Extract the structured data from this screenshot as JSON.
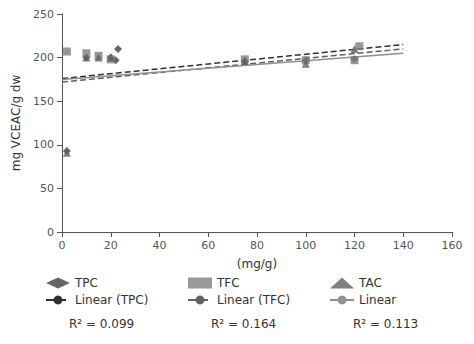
{
  "chart_data": {
    "type": "scatter",
    "xlabel": "(mg/g)",
    "ylabel": "mg VCEAC/g dw",
    "series": [
      {
        "name": "TPC",
        "type": "scatter",
        "marker": "diamond",
        "color": "#404040",
        "x": [
          2,
          10,
          20,
          22,
          23,
          75,
          100,
          120
        ],
        "values": [
          93,
          200,
          200,
          197,
          210,
          196,
          197,
          198
        ]
      },
      {
        "name": "TFC",
        "type": "scatter",
        "marker": "square",
        "color": "#808080",
        "x": [
          2,
          10,
          15,
          20,
          75,
          100,
          120,
          122
        ],
        "values": [
          207,
          205,
          202,
          198,
          198,
          197,
          197,
          213
        ]
      },
      {
        "name": "TAC",
        "type": "scatter",
        "marker": "triangle",
        "color": "#606060",
        "x": [
          2,
          10,
          15,
          20,
          75,
          100,
          120
        ],
        "values": [
          91,
          200,
          200,
          200,
          196,
          193,
          210
        ]
      },
      {
        "name": "Linear (TPC)",
        "type": "line",
        "line_style": "dashed",
        "color": "#303030",
        "x": [
          0,
          140
        ],
        "values": [
          176,
          215
        ]
      },
      {
        "name": "Linear (TFC)",
        "type": "line",
        "line_style": "dashed",
        "color": "#606060",
        "x": [
          0,
          140
        ],
        "values": [
          172,
          210
        ]
      },
      {
        "name": "Linear",
        "type": "line",
        "line_style": "solid",
        "color": "#909090",
        "x": [
          0,
          140
        ],
        "values": [
          175,
          205
        ]
      }
    ],
    "annotations": [
      "R² = 0.099",
      "R² = 0.164",
      "R² = 0.113"
    ],
    "xlim": [
      0,
      160
    ],
    "ylim": [
      0,
      250
    ],
    "xticks": [
      0,
      20,
      40,
      60,
      80,
      100,
      120,
      140,
      160
    ],
    "yticks": [
      0,
      50,
      100,
      150,
      200,
      250
    ],
    "grid": false,
    "legend": "bottom"
  }
}
